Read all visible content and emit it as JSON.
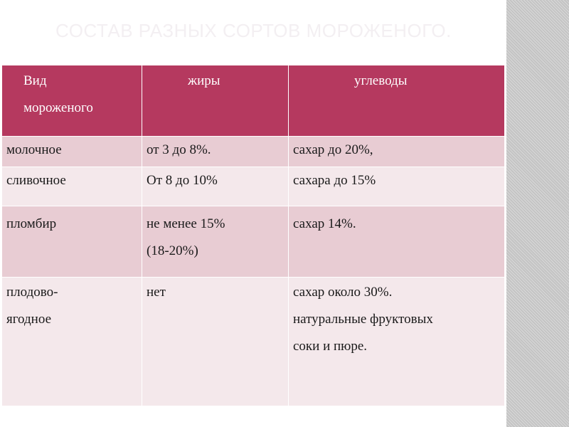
{
  "slide": {
    "title": "СОСТАВ РАЗНЫХ СОРТОВ МОРОЖЕНОГО."
  },
  "table": {
    "headers": [
      [
        "Вид",
        "мороженого"
      ],
      [
        "жиры"
      ],
      [
        "углеводы"
      ]
    ],
    "rows": [
      {
        "kind": [
          "молочное"
        ],
        "fats": [
          "от 3 до 8%."
        ],
        "carbs": [
          "сахар до 20%,"
        ]
      },
      {
        "kind": [
          "сливочное"
        ],
        "fats": [
          "От 8 до 10%"
        ],
        "carbs": [
          "сахара до 15%"
        ]
      },
      {
        "kind": [
          "пломбир"
        ],
        "fats": [
          "не менее 15%",
          "(18-20%)"
        ],
        "carbs": [
          "сахар 14%."
        ]
      },
      {
        "kind": [
          "плодово-",
          "ягодное"
        ],
        "fats": [
          "нет"
        ],
        "carbs": [
          "сахар около 30%.",
          "натуральные фруктовых",
          "соки и пюре."
        ]
      }
    ]
  },
  "colors": {
    "header": "#b5395f",
    "row_odd": "#e8ccd3",
    "row_even": "#f4e8eb",
    "title": "#f3eff2",
    "side_stripe": "#c4c4c4"
  }
}
